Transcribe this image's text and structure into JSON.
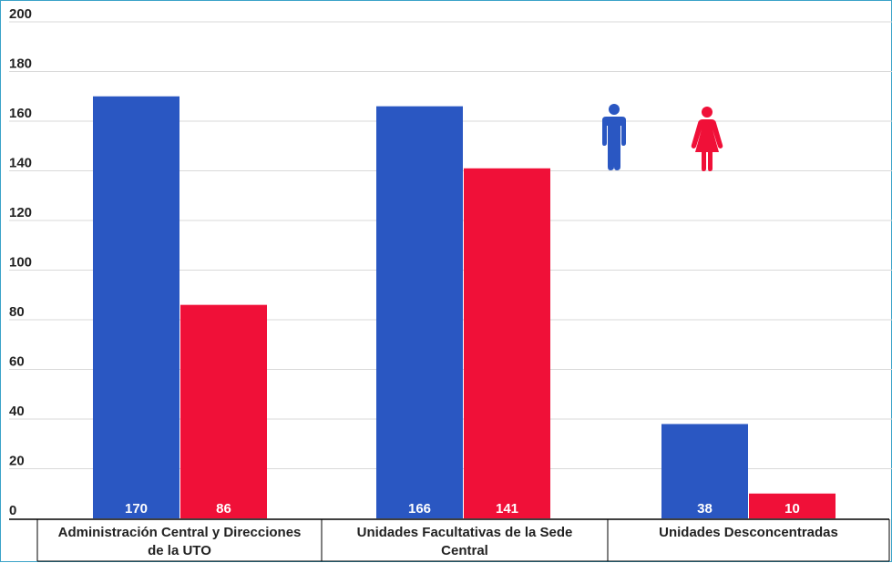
{
  "chart_data": {
    "type": "bar",
    "categories": [
      {
        "lines": [
          "Administración Central y Direcciones",
          "de la UTO"
        ]
      },
      {
        "lines": [
          "Unidades Facultativas de la Sede",
          "Central"
        ]
      },
      {
        "lines": [
          "Unidades Desconcentradas"
        ]
      }
    ],
    "series": [
      {
        "color": "#2a57c2",
        "values": [
          170,
          166,
          38
        ]
      },
      {
        "color": "#f01038",
        "values": [
          86,
          141,
          10
        ]
      }
    ],
    "y_ticks": [
      "0",
      "20",
      "40",
      "60",
      "80",
      "100",
      "120",
      "140",
      "160",
      "180",
      "200"
    ],
    "ylim": [
      0,
      200
    ],
    "grid": true,
    "legend_icons": [
      {
        "icon": "male-figure-icon",
        "color": "#2a57c2"
      },
      {
        "icon": "female-figure-icon",
        "color": "#f01038"
      }
    ]
  }
}
